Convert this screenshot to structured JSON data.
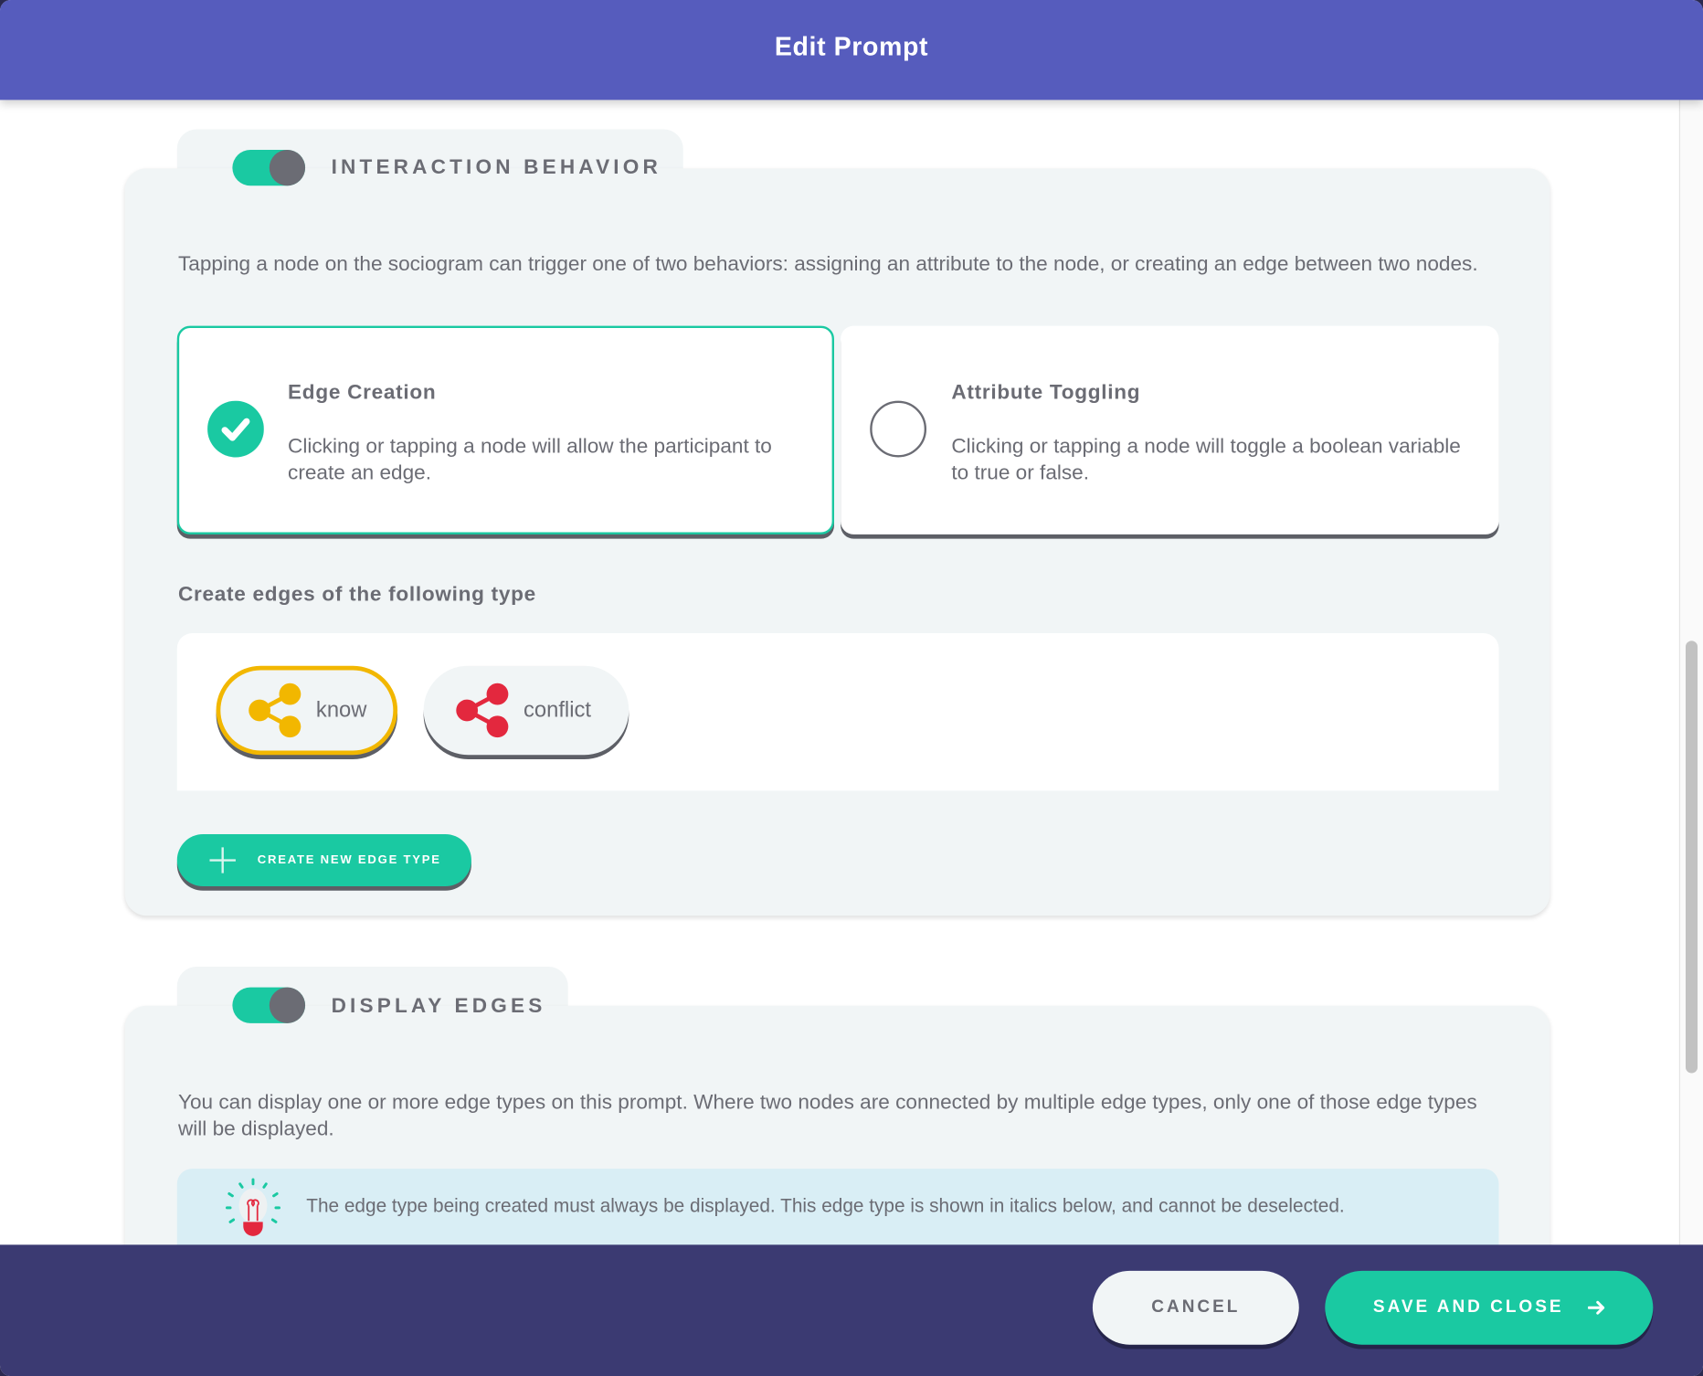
{
  "header": {
    "title": "Edit Prompt"
  },
  "interaction": {
    "title": "INTERACTION BEHAVIOR",
    "enabled": true,
    "description": "Tapping a node on the sociogram can trigger one of two behaviors: assigning an attribute to the node, or creating an edge between two nodes.",
    "options": [
      {
        "title": "Edge Creation",
        "description": "Clicking or tapping a node will allow the participant to create an edge.",
        "selected": true
      },
      {
        "title": "Attribute Toggling",
        "description": "Clicking or tapping a node will toggle a boolean variable to true or false.",
        "selected": false
      }
    ],
    "edge_type_label": "Create edges of the following type",
    "edge_types": [
      {
        "label": "know",
        "color": "#f2b700",
        "selected": true
      },
      {
        "label": "conflict",
        "color": "#e3283e",
        "selected": false
      }
    ],
    "create_button": "CREATE NEW EDGE TYPE"
  },
  "display": {
    "title": "DISPLAY EDGES",
    "enabled": true,
    "description": "You can display one or more edge types on this prompt. Where two nodes are connected by multiple edge types, only one of those edge types will be displayed.",
    "tip": "The edge type being created must always be displayed. This edge type is shown in italics below, and cannot be deselected."
  },
  "footer": {
    "cancel": "CANCEL",
    "save": "SAVE AND CLOSE"
  },
  "colors": {
    "header": "#565cbd",
    "accent": "#1ac9a2",
    "footer": "#3b3a72",
    "panel": "#f1f5f6"
  }
}
